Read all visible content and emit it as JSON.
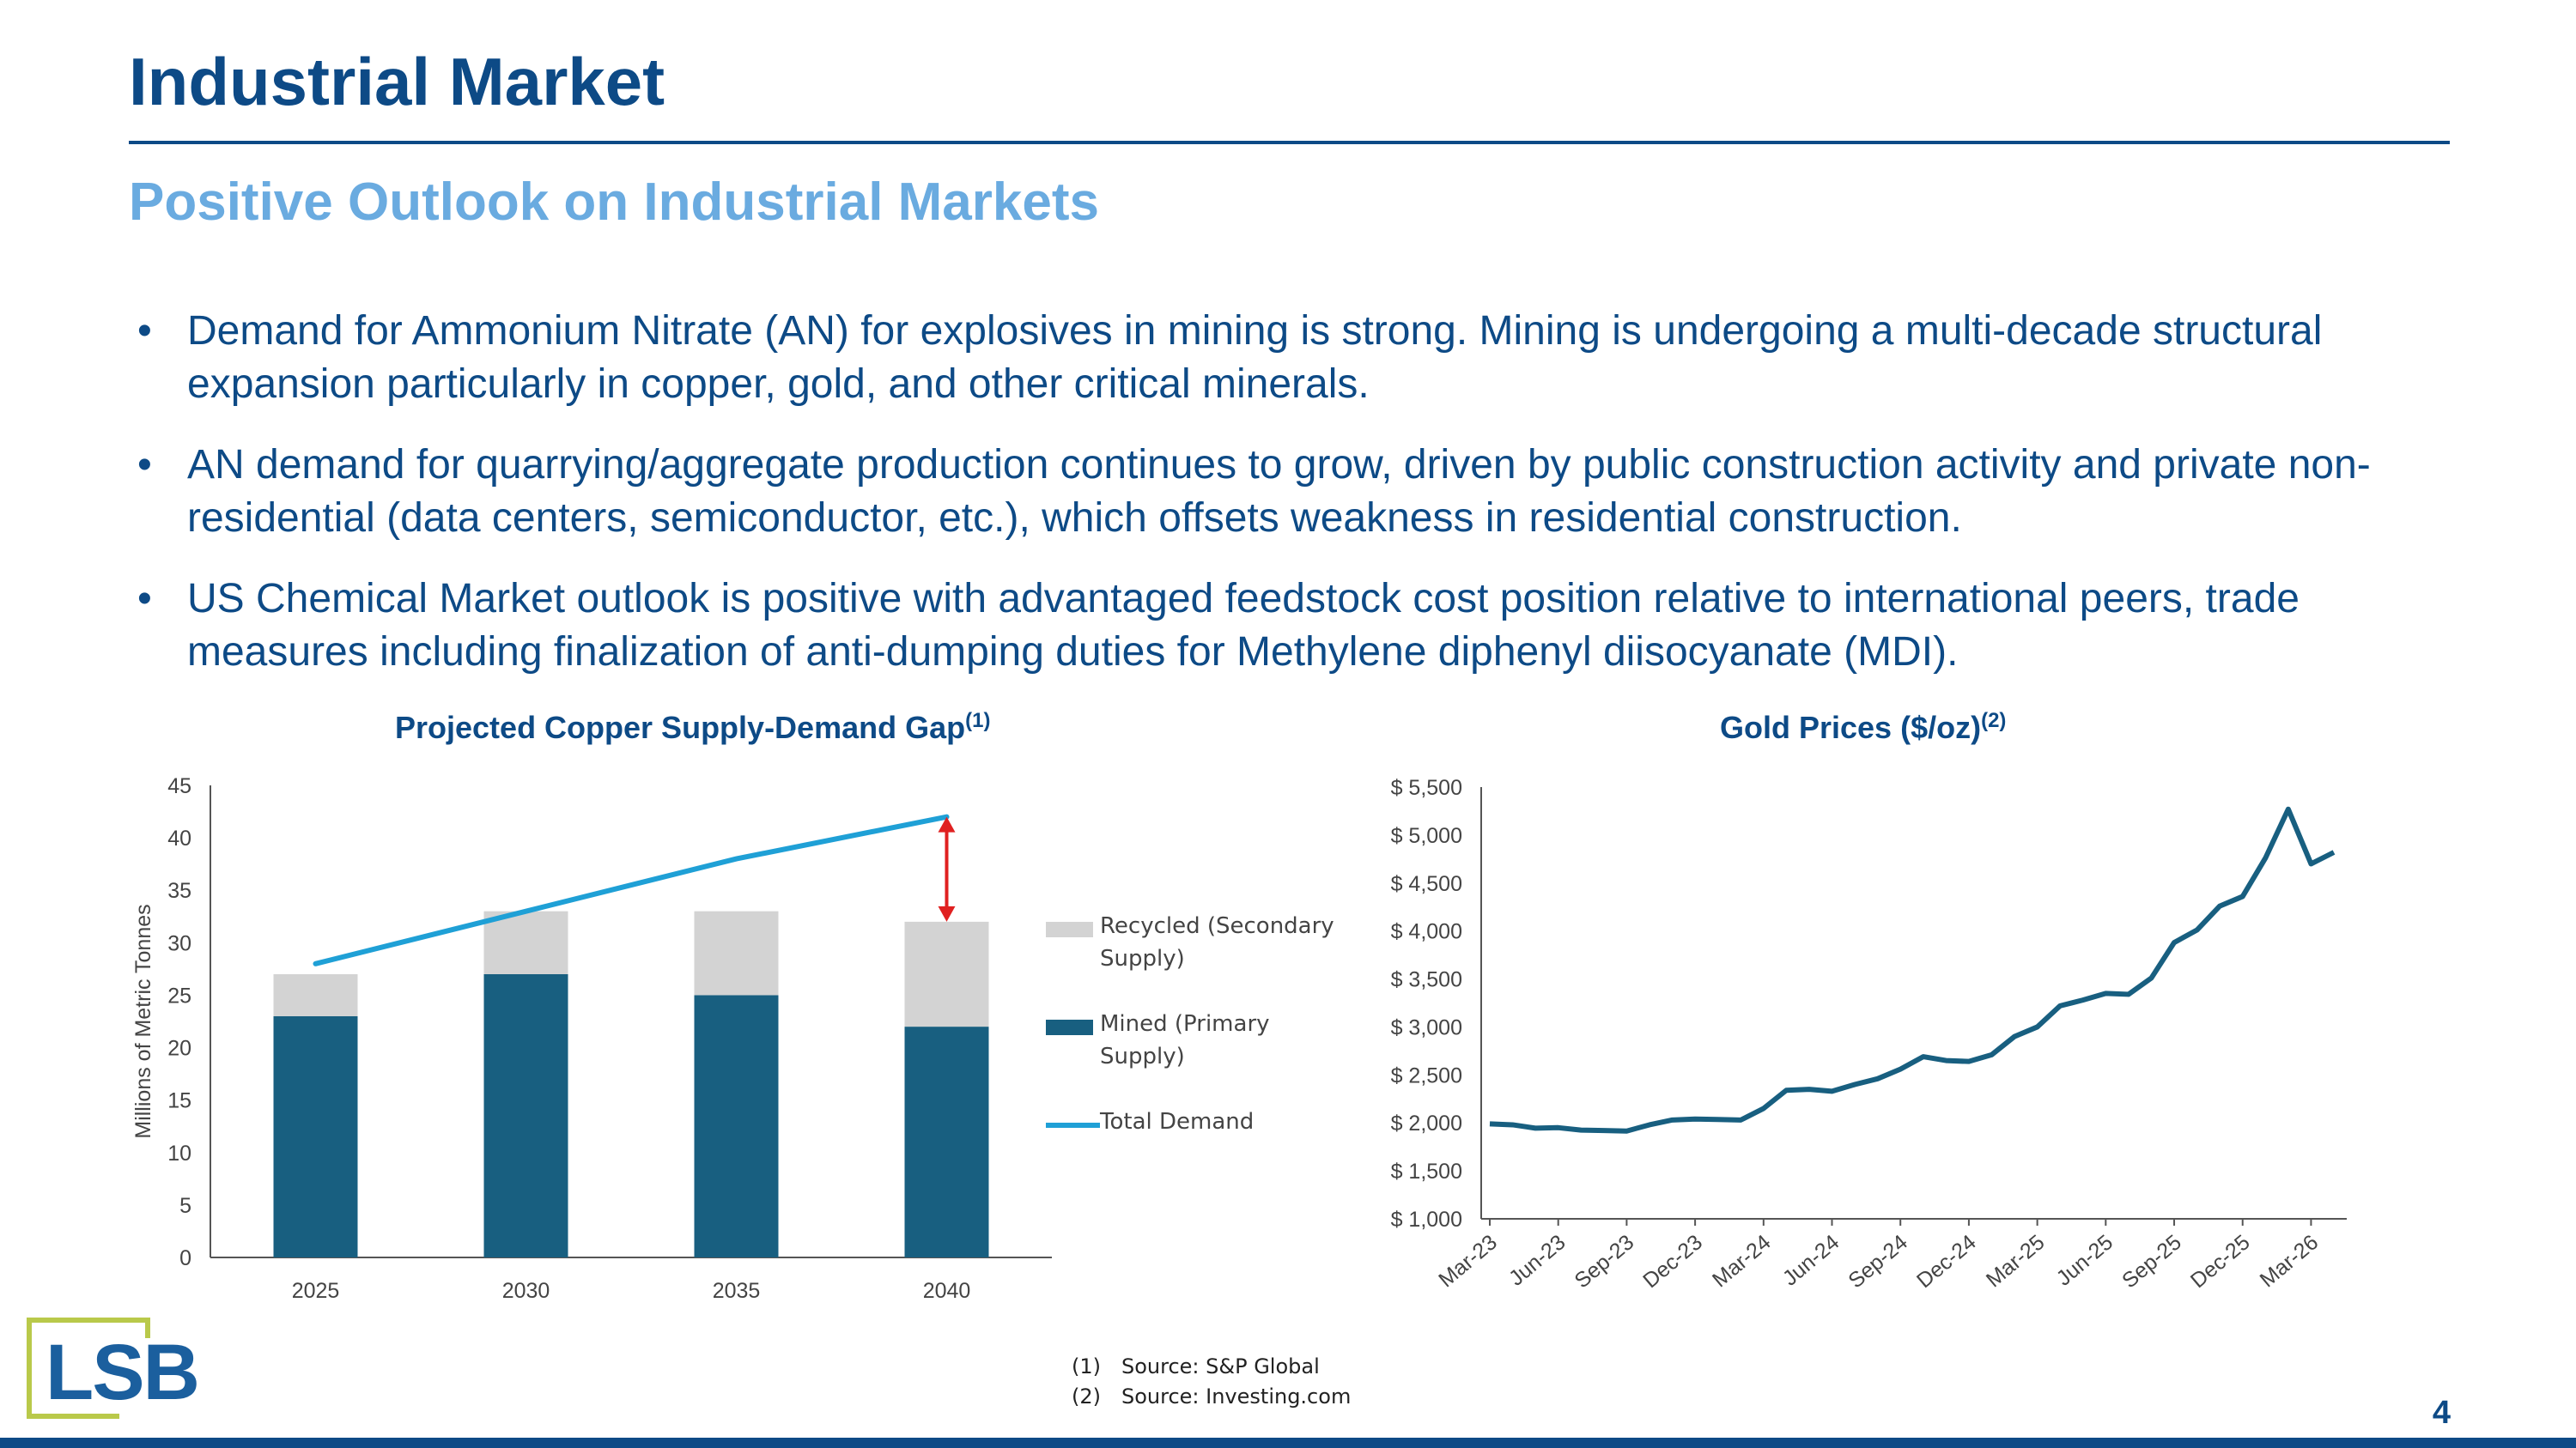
{
  "header": {
    "title": "Industrial Market",
    "subtitle": "Positive Outlook on Industrial Markets"
  },
  "bullets": [
    "Demand for Ammonium Nitrate (AN) for explosives in mining is strong. Mining is undergoing a multi-decade structural expansion particularly in copper, gold, and other critical minerals.",
    "AN demand for quarrying/aggregate production continues to grow, driven by public construction activity and private non-residential (data centers, semiconductor, etc.), which offsets weakness in residential construction.",
    "US Chemical Market outlook is positive with advantaged feedstock cost position relative to international peers, trade measures including finalization of anti-dumping duties for Methylene diphenyl diisocyanate (MDI)."
  ],
  "bullet_symbol": "•",
  "chart_data": [
    {
      "type": "bar",
      "title": "Projected Copper Supply-Demand Gap",
      "title_sup": "(1)",
      "ylabel": "Millions of Metric Tonnes",
      "xlabel": "",
      "ylim": [
        0,
        45
      ],
      "yticks": [
        0,
        5,
        10,
        15,
        20,
        25,
        30,
        35,
        40,
        45
      ],
      "categories": [
        "2025",
        "2030",
        "2035",
        "2040"
      ],
      "stacked": true,
      "series": [
        {
          "name": "Mined (Primary Supply)",
          "values": [
            23,
            27,
            25,
            22
          ],
          "color": "#185f80"
        },
        {
          "name": "Recycled (Secondary Supply)",
          "values": [
            4,
            6,
            8,
            10
          ],
          "color": "#d3d3d3"
        },
        {
          "name": "Total Demand",
          "type": "line",
          "values": [
            28,
            33,
            38,
            42
          ],
          "color": "#1fa0d6"
        }
      ],
      "legend_labels": {
        "recycled": "Recycled (Secondary Supply)",
        "mined": "Mined (Primary Supply)",
        "demand": "Total Demand"
      },
      "gap_arrow": {
        "category": "2040",
        "from": 32,
        "to": 42,
        "color": "#e02020"
      },
      "legend": "right",
      "grid": false
    },
    {
      "type": "line",
      "title": "Gold Prices ($/oz)",
      "title_sup": "(2)",
      "xlabel": "",
      "ylabel": "",
      "ylim": [
        1000,
        5500
      ],
      "yticks": [
        1000,
        1500,
        2000,
        2500,
        3000,
        3500,
        4000,
        4500,
        5000,
        5500
      ],
      "ytick_labels": [
        "$ 1,000",
        "$ 1,500",
        "$ 2,000",
        "$ 2,500",
        "$ 3,000",
        "$ 3,500",
        "$ 4,000",
        "$ 4,500",
        "$ 5,000",
        "$ 5,500"
      ],
      "xtick_labels": [
        "Mar-23",
        "Jun-23",
        "Sep-23",
        "Dec-23",
        "Mar-24",
        "Jun-24",
        "Sep-24",
        "Dec-24",
        "Mar-25",
        "Jun-25",
        "Sep-25",
        "Dec-25",
        "Mar-26"
      ],
      "x": [
        "Mar-23",
        "Apr-23",
        "May-23",
        "Jun-23",
        "Jul-23",
        "Aug-23",
        "Sep-23",
        "Oct-23",
        "Nov-23",
        "Dec-23",
        "Jan-24",
        "Feb-24",
        "Mar-24",
        "Apr-24",
        "May-24",
        "Jun-24",
        "Jul-24",
        "Aug-24",
        "Sep-24",
        "Oct-24",
        "Nov-24",
        "Dec-24",
        "Jan-25",
        "Feb-25",
        "Mar-25",
        "Apr-25",
        "May-25",
        "Jun-25",
        "Jul-25",
        "Aug-25",
        "Sep-25",
        "Oct-25",
        "Nov-25",
        "Dec-25",
        "Jan-26",
        "Feb-26",
        "Mar-26",
        "Apr-26"
      ],
      "series": [
        {
          "name": "",
          "color": "#185f80",
          "values": [
            1990,
            1980,
            1945,
            1950,
            1925,
            1920,
            1915,
            1980,
            2030,
            2040,
            2035,
            2030,
            2150,
            2340,
            2350,
            2330,
            2400,
            2460,
            2560,
            2690,
            2650,
            2640,
            2710,
            2900,
            3000,
            3220,
            3280,
            3350,
            3340,
            3510,
            3880,
            4010,
            4260,
            4360,
            4760,
            5270,
            4700,
            4820
          ]
        }
      ],
      "legend": "none",
      "grid": false
    }
  ],
  "logo": {
    "text": "LSB"
  },
  "footnotes": [
    {
      "num": "(1)",
      "text": "Source: S&P Global"
    },
    {
      "num": "(2)",
      "text": "Source: Investing.com"
    }
  ],
  "page_number": "4",
  "colors": {
    "title": "#0d4a86",
    "subtitle": "#6aabe0",
    "logo_blue": "#1b5f9e",
    "logo_green": "#b9c94a"
  }
}
